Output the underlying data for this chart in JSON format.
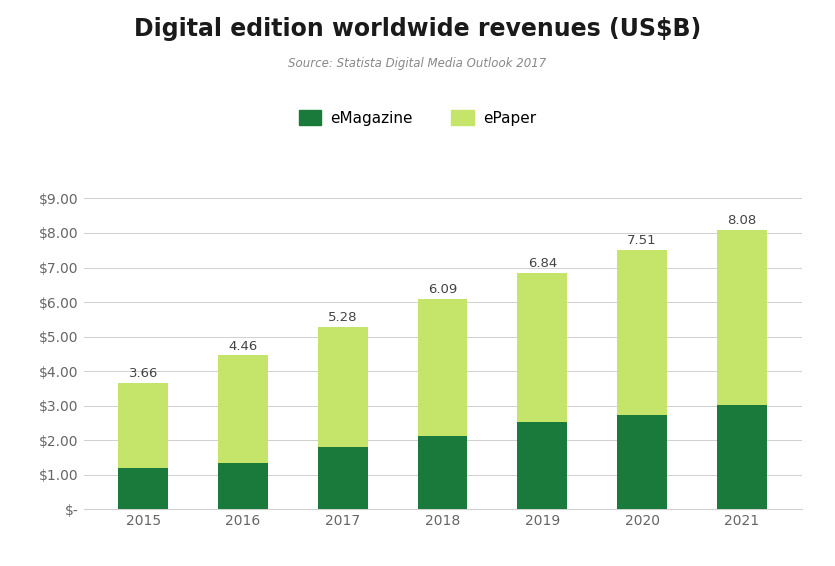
{
  "title": "Digital edition worldwide revenues (US$B)",
  "subtitle": "Source: Statista Digital Media Outlook 2017",
  "years": [
    2015,
    2016,
    2017,
    2018,
    2019,
    2020,
    2021
  ],
  "emagazine": [
    1.2,
    1.33,
    1.82,
    2.12,
    2.52,
    2.72,
    3.01
  ],
  "totals": [
    3.66,
    4.46,
    5.28,
    6.09,
    6.84,
    7.51,
    8.08
  ],
  "color_emagazine": "#1a7a3c",
  "color_epaper": "#c5e46a",
  "background_color": "#ffffff",
  "grid_color": "#d0d0d0",
  "legend_labels": [
    "eMagazine",
    "ePaper"
  ],
  "ylim": [
    0,
    9.5
  ],
  "yticks": [
    0,
    1,
    2,
    3,
    4,
    5,
    6,
    7,
    8,
    9
  ],
  "bar_width": 0.5,
  "title_fontsize": 17,
  "subtitle_fontsize": 8.5,
  "tick_fontsize": 10,
  "legend_fontsize": 11,
  "label_fontsize": 9.5
}
